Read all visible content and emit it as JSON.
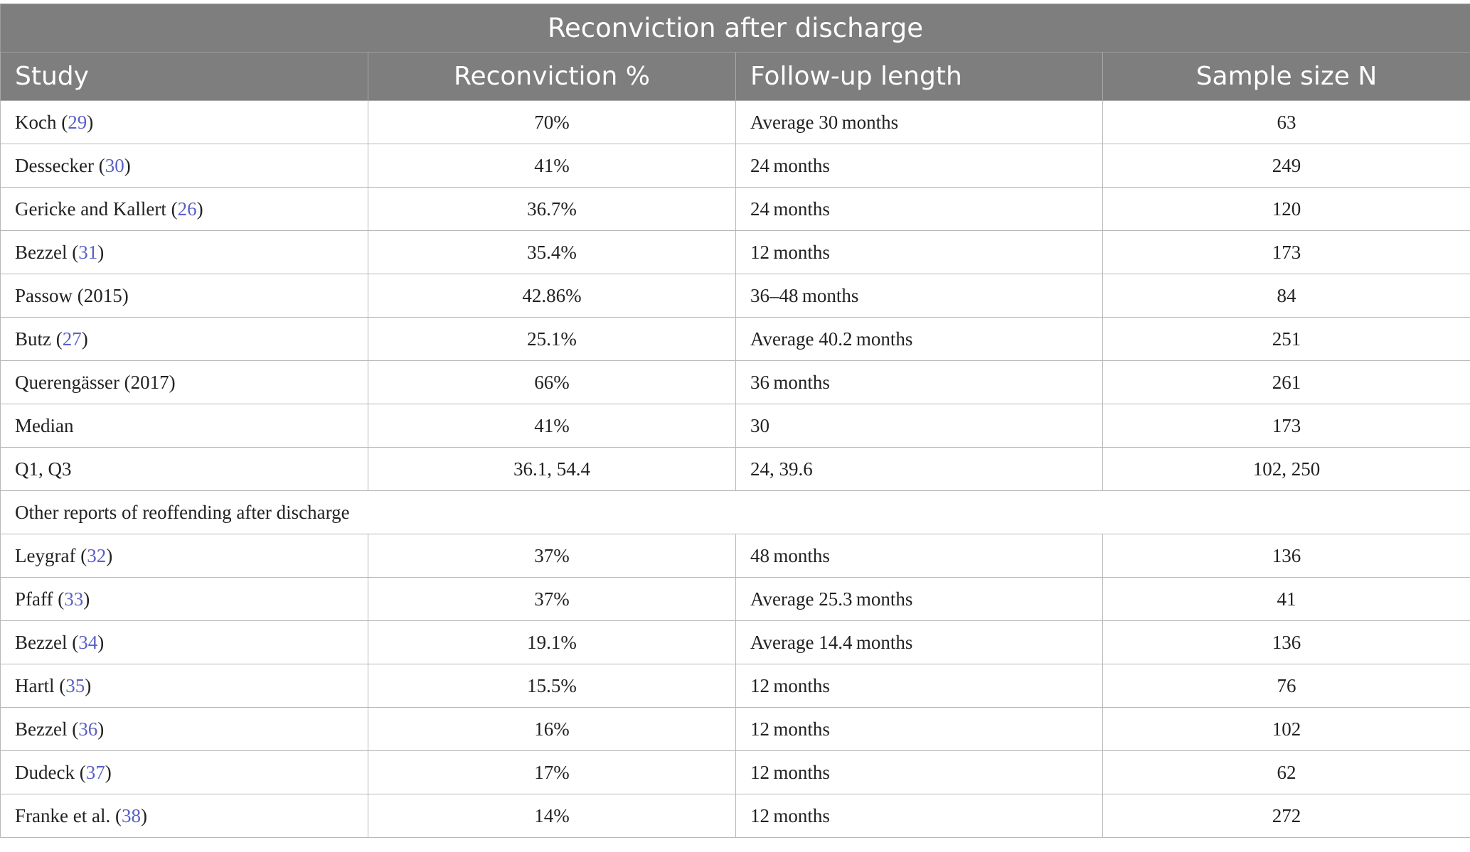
{
  "table": {
    "caption": "Reconviction after discharge",
    "headers": [
      "Study",
      "Reconviction %",
      "Follow-up length",
      "Sample size N"
    ],
    "rows": [
      {
        "study": "Koch",
        "ref": "29",
        "reconviction": "70%",
        "followup": "Average 30 months",
        "n": "63"
      },
      {
        "study": "Dessecker",
        "ref": "30",
        "reconviction": "41%",
        "followup": "24 months",
        "n": "249"
      },
      {
        "study": "Gericke and Kallert",
        "ref": "26",
        "reconviction": "36.7%",
        "followup": "24 months",
        "n": "120"
      },
      {
        "study": "Bezzel",
        "ref": "31",
        "reconviction": "35.4%",
        "followup": "12 months",
        "n": "173"
      },
      {
        "study": "Passow (2015)",
        "ref": "",
        "reconviction": "42.86%",
        "followup": "36–48 months",
        "n": "84"
      },
      {
        "study": "Butz",
        "ref": "27",
        "reconviction": "25.1%",
        "followup": "Average 40.2 months",
        "n": "251"
      },
      {
        "study": "Querengässer (2017)",
        "ref": "",
        "reconviction": "66%",
        "followup": "36 months",
        "n": "261"
      },
      {
        "study": "Median",
        "ref": "",
        "reconviction": "41%",
        "followup": "30",
        "n": "173"
      },
      {
        "study": "Q1, Q3",
        "ref": "",
        "reconviction": "36.1, 54.4",
        "followup": "24, 39.6",
        "n": "102, 250"
      }
    ],
    "section_label": "Other reports of reoffending after discharge",
    "rows2": [
      {
        "study": "Leygraf",
        "ref": "32",
        "reconviction": "37%",
        "followup": "48 months",
        "n": "136"
      },
      {
        "study": "Pfaff",
        "ref": "33",
        "reconviction": "37%",
        "followup": "Average 25.3 months",
        "n": "41"
      },
      {
        "study": "Bezzel",
        "ref": "34",
        "reconviction": "19.1%",
        "followup": "Average 14.4 months",
        "n": "136"
      },
      {
        "study": "Hartl",
        "ref": "35",
        "reconviction": "15.5%",
        "followup": "12 months",
        "n": "76"
      },
      {
        "study": "Bezzel",
        "ref": "36",
        "reconviction": "16%",
        "followup": "12 months",
        "n": "102"
      },
      {
        "study": "Dudeck",
        "ref": "37",
        "reconviction": "17%",
        "followup": "12 months",
        "n": "62"
      },
      {
        "study": "Franke et al.",
        "ref": "38",
        "reconviction": "14%",
        "followup": "12 months",
        "n": "272"
      }
    ]
  }
}
